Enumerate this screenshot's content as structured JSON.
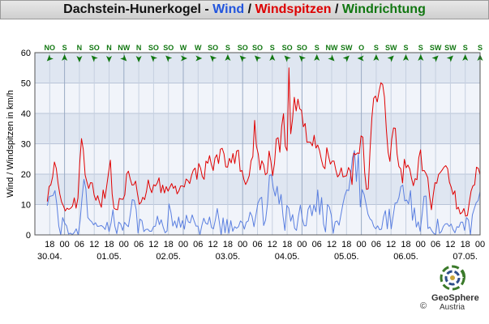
{
  "title": {
    "station": "Dachstein-Hunerkogel",
    "sep1": " - ",
    "wind": "Wind",
    "sep2": " / ",
    "gusts": "Windspitzen",
    "sep3": " / ",
    "direction": "Windrichtung"
  },
  "colors": {
    "wind": "#2255dd",
    "gusts": "#dd0000",
    "direction": "#117711",
    "wind_line": "#5a7fe0",
    "gust_line": "#e00000"
  },
  "logo": {
    "name": "GeoSphere",
    "copyright": "©",
    "country": "Austria"
  },
  "chart_data": {
    "type": "line",
    "ylabel": "Wind / Windspitzen in km/h",
    "ylim": [
      0,
      60
    ],
    "yticks": [
      0,
      10,
      20,
      30,
      40,
      50,
      60
    ],
    "x_range_hours": [
      -6,
      174
    ],
    "hour_ticks": [
      "18",
      "00",
      "06",
      "12",
      "18",
      "00",
      "06",
      "12",
      "18",
      "00",
      "06",
      "12",
      "18",
      "00",
      "06",
      "12",
      "18",
      "00",
      "06",
      "12",
      "18",
      "00",
      "06",
      "12",
      "18",
      "00",
      "06",
      "12",
      "18",
      "00",
      "06"
    ],
    "date_labels": [
      "30.04.",
      "01.05.",
      "02.05.",
      "03.05.",
      "04.05.",
      "05.05.",
      "06.05.",
      "07.05."
    ],
    "grid": true,
    "direction_labels": [
      "NO",
      "S",
      "N",
      "SO",
      "N",
      "NW",
      "N",
      "SO",
      "SO",
      "W",
      "W",
      "SO",
      "S",
      "SO",
      "SO",
      "S",
      "SO",
      "SO",
      "S",
      "NW",
      "SW",
      "O",
      "S",
      "SW",
      "S",
      "S",
      "SW",
      "SW",
      "S",
      "S"
    ],
    "direction_arrows_deg": [
      45,
      180,
      0,
      135,
      0,
      315,
      0,
      135,
      135,
      270,
      270,
      135,
      180,
      135,
      135,
      180,
      135,
      135,
      180,
      315,
      225,
      90,
      180,
      225,
      180,
      180,
      225,
      225,
      180,
      180
    ],
    "series": [
      {
        "name": "Wind",
        "color": "#5a7fe0",
        "values": [
          9.6,
          12.6,
          12.8,
          13.0,
          14.6,
          9.8,
          2.9,
          0.0,
          5.7,
          3.9,
          3.0,
          0.3,
          0.6,
          0.1,
          0.8,
          2.0,
          0.0,
          4.7,
          12.0,
          18.3,
          15.2,
          5.7,
          4.9,
          4.3,
          3.3,
          4.0,
          2.8,
          2.9,
          3.1,
          2.6,
          1.8,
          4.2,
          1.1,
          3.9,
          8.3,
          2.9,
          0.4,
          4.2,
          3.6,
          1.5,
          4.1,
          3.3,
          2.7,
          6.8,
          11.6,
          11.4,
          8.4,
          0.6,
          5.2,
          4.7,
          1.1,
          1.8,
          1.9,
          1.2,
          1.2,
          2.7,
          2.9,
          6.2,
          3.4,
          5.0,
          2.6,
          0.7,
          1.3,
          10.2,
          7.4,
          2.9,
          4.6,
          2.3,
          5.9,
          2.5,
          4.7,
          1.9,
          6.5,
          4.3,
          4.0,
          6.6,
          4.7,
          2.9,
          2.9,
          0.0,
          3.1,
          5.5,
          3.9,
          3.5,
          5.9,
          2.4,
          2.0,
          5.0,
          8.7,
          4.5,
          0.0,
          5.6,
          0.7,
          5.1,
          0.5,
          4.7,
          1.2,
          2.7,
          2.2,
          2.7,
          4.6,
          4.0,
          1.9,
          4.2,
          4.6,
          7.5,
          6.1,
          2.7,
          6.5,
          10.4,
          11.9,
          12.4,
          3.1,
          4.9,
          10.4,
          19.6,
          19.8,
          15.4,
          12.8,
          16.0,
          10.2,
          13.3,
          6.2,
          1.5,
          9.7,
          8.8,
          4.5,
          6.7,
          2.2,
          1.5,
          6.1,
          9.8,
          5.2,
          3.0,
          3.0,
          8.4,
          9.8,
          6.3,
          9.9,
          7.6,
          14.8,
          6.7,
          12.3,
          3.6,
          1.0,
          10.0,
          9.2,
          6.5,
          0.5,
          4.3,
          4.6,
          3.2,
          6.6,
          10.1,
          13.0,
          14.8,
          14.6,
          19.6,
          25.4,
          27.8,
          17.6,
          26.7,
          9.2,
          14.9,
          13.3,
          10.1,
          6.8,
          5.3,
          4.7,
          2.8,
          2.0,
          3.0,
          1.7,
          1.9,
          5.9,
          8.0,
          2.0,
          8.5,
          2.0,
          6.2,
          10.5,
          10.5,
          12.3,
          15.9,
          16.4,
          11.2,
          11.5,
          10.2,
          14.6,
          4.8,
          8.9,
          2.6,
          4.3,
          1.2,
          6.6,
          12.7,
          12.8,
          2.1,
          2.6,
          1.4,
          0.5,
          0.1,
          5.2,
          0.5,
          1.1,
          2.8,
          3.6,
          3.7,
          2.8,
          3.6,
          1.8,
          0.7,
          2.7,
          2.5,
          4.2,
          4.2,
          1.5,
          5.7,
          4.9,
          0.0,
          6.6,
          8.7,
          10.6,
          11.3,
          14.3
        ]
      },
      {
        "name": "Windspitzen",
        "color": "#e00000",
        "values": [
          11.0,
          15.9,
          16.5,
          19.1,
          24.0,
          21.9,
          17.0,
          13.4,
          10.8,
          9.5,
          7.9,
          8.8,
          8.4,
          8.8,
          9.5,
          12.2,
          8.8,
          12.1,
          23.6,
          31.7,
          28.1,
          19.7,
          17.4,
          15.3,
          17.2,
          17.1,
          13.1,
          11.4,
          12.9,
          10.7,
          9.1,
          14.8,
          12.0,
          16.1,
          20.6,
          24.6,
          13.5,
          8.8,
          8.4,
          8.3,
          12.0,
          11.8,
          11.7,
          13.2,
          20.0,
          21.0,
          18.4,
          16.4,
          16.5,
          17.7,
          13.7,
          10.1,
          10.7,
          12.4,
          11.6,
          14.3,
          18.1,
          15.4,
          13.9,
          16.5,
          16.1,
          17.1,
          18.8,
          13.9,
          16.4,
          13.8,
          15.9,
          14.4,
          15.7,
          16.9,
          15.3,
          16.1,
          13.5,
          14.5,
          16.1,
          16.1,
          15.8,
          18.4,
          17.9,
          16.9,
          19.6,
          21.3,
          22.0,
          18.3,
          23.5,
          22.0,
          19.2,
          18.3,
          24.3,
          23.6,
          26.1,
          23.2,
          21.2,
          25.3,
          26.4,
          23.5,
          28.2,
          28.5,
          26.7,
          22.4,
          22.3,
          25.2,
          23.7,
          26.8,
          23.5,
          27.6,
          27.9,
          20.9,
          21.2,
          18.3,
          16.6,
          17.8,
          19.5,
          24.4,
          25.8,
          37.7,
          29.2,
          26.6,
          21.4,
          24.4,
          23.1,
          19.8,
          20.4,
          27.6,
          24.3,
          19.5,
          23.6,
          31.6,
          32.0,
          27.2,
          35.8,
          39.9,
          29.2,
          27.7,
          55.0,
          33.3,
          38.0,
          45.3,
          40.8,
          44.7,
          41.5,
          41.0,
          35.6,
          36.7,
          30.5,
          30.6,
          30.5,
          29.3,
          32.8,
          28.6,
          29.6,
          27.7,
          24.8,
          22.5,
          21.8,
          28.7,
          25.9,
          23.3,
          24.3,
          24.3,
          21.4,
          19.1,
          19.9,
          22.1,
          19.1,
          19.3,
          19.5,
          22.2,
          21.1,
          16.6,
          26.9,
          26.4,
          27.0,
          26.8,
          32.6,
          32.2,
          20.6,
          15.0,
          15.2,
          27.9,
          38.7,
          45.0,
          45.7,
          43.8,
          47.3,
          50.1,
          49.5,
          45.3,
          34.8,
          27.2,
          24.2,
          31.5,
          35.2,
          35.1,
          26.5,
          22.5,
          21.8,
          17.1,
          24.9,
          22.1,
          23.0,
          21.7,
          18.6,
          16.2,
          18.5,
          18.2,
          25.4,
          28.0,
          21.1,
          21.2,
          20.2,
          18.8,
          12.8,
          8.3,
          13.1,
          17.2,
          17.0,
          19.9,
          20.6,
          21.4,
          22.3,
          22.8,
          21.8,
          17.3,
          15.7,
          13.3,
          14.5,
          8.5,
          9.1,
          6.9,
          7.4,
          8.7,
          6.2,
          6.4,
          10.7,
          14.4,
          16.1,
          16.5,
          22.3,
          21.9,
          19.8
        ]
      }
    ]
  }
}
